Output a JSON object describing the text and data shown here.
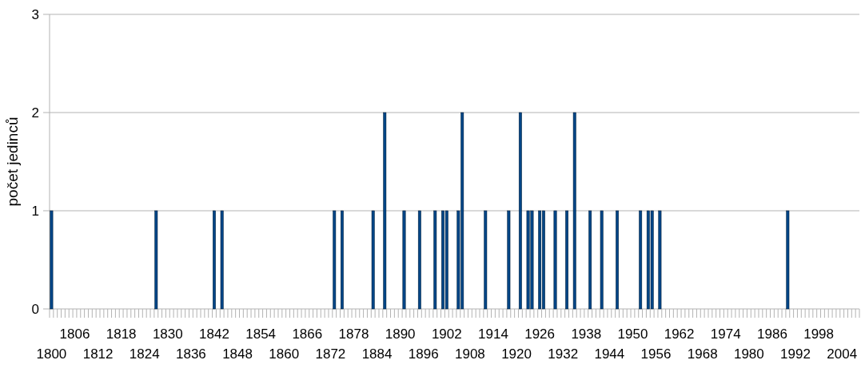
{
  "chart_data": {
    "type": "bar",
    "ylabel": "počet jedinců",
    "color": "#004586",
    "ylim": [
      0,
      3
    ],
    "yticks": [
      0,
      1,
      2,
      3
    ],
    "grid": "y",
    "categories": [
      "1800",
      null,
      null,
      null,
      null,
      null,
      "1806",
      null,
      null,
      null,
      null,
      null,
      "1812",
      null,
      null,
      null,
      null,
      null,
      "1818",
      null,
      null,
      null,
      null,
      null,
      "1824",
      null,
      null,
      null,
      null,
      null,
      "1830",
      null,
      null,
      null,
      null,
      null,
      "1836",
      null,
      null,
      null,
      null,
      null,
      "1842",
      null,
      null,
      null,
      null,
      null,
      "1848",
      null,
      null,
      null,
      null,
      null,
      "1854",
      null,
      null,
      null,
      null,
      null,
      "1860",
      null,
      null,
      null,
      null,
      null,
      "1866",
      null,
      null,
      null,
      null,
      null,
      "1872",
      null,
      null,
      null,
      null,
      null,
      "1878",
      null,
      null,
      null,
      null,
      null,
      "1884",
      null,
      null,
      null,
      null,
      null,
      "1890",
      null,
      null,
      null,
      null,
      null,
      "1896",
      null,
      null,
      null,
      null,
      null,
      "1902",
      null,
      null,
      null,
      null,
      null,
      "1908",
      null,
      null,
      null,
      null,
      null,
      "1914",
      null,
      null,
      null,
      null,
      null,
      "1920",
      null,
      null,
      null,
      null,
      null,
      "1926",
      null,
      null,
      null,
      null,
      null,
      "1932",
      null,
      null,
      null,
      null,
      null,
      "1938",
      null,
      null,
      null,
      null,
      null,
      "1944",
      null,
      null,
      null,
      null,
      null,
      "1950",
      null,
      null,
      null,
      null,
      null,
      "1956",
      null,
      null,
      null,
      null,
      null,
      "1962",
      null,
      null,
      null,
      null,
      null,
      "1968",
      null,
      null,
      null,
      null,
      null,
      "1974",
      null,
      null,
      null,
      null,
      null,
      "1980",
      null,
      null,
      null,
      null,
      null,
      "1986",
      null,
      null,
      null,
      null,
      null,
      "1992",
      null,
      null,
      null,
      null,
      null,
      "1998",
      null,
      null,
      null,
      null,
      null,
      "2004",
      null,
      null,
      null,
      null
    ],
    "values": [
      1,
      0,
      0,
      0,
      0,
      0,
      0,
      0,
      0,
      0,
      0,
      0,
      0,
      0,
      0,
      0,
      0,
      0,
      0,
      0,
      0,
      0,
      0,
      0,
      0,
      0,
      0,
      1,
      0,
      0,
      0,
      0,
      0,
      0,
      0,
      0,
      0,
      0,
      0,
      0,
      0,
      0,
      1,
      0,
      1,
      0,
      0,
      0,
      0,
      0,
      0,
      0,
      0,
      0,
      0,
      0,
      0,
      0,
      0,
      0,
      0,
      0,
      0,
      0,
      0,
      0,
      0,
      0,
      0,
      0,
      0,
      0,
      0,
      1,
      0,
      1,
      0,
      0,
      0,
      0,
      0,
      0,
      0,
      1,
      0,
      0,
      2,
      0,
      0,
      0,
      0,
      1,
      0,
      0,
      0,
      1,
      0,
      0,
      0,
      1,
      0,
      1,
      1,
      0,
      0,
      1,
      2,
      0,
      0,
      0,
      0,
      0,
      1,
      0,
      0,
      0,
      0,
      0,
      1,
      0,
      0,
      2,
      0,
      1,
      1,
      0,
      1,
      1,
      0,
      0,
      1,
      0,
      0,
      1,
      0,
      2,
      0,
      0,
      0,
      1,
      0,
      0,
      1,
      0,
      0,
      0,
      1,
      0,
      0,
      0,
      0,
      0,
      1,
      0,
      1,
      1,
      0,
      1,
      0,
      0,
      0,
      0,
      0,
      0,
      0,
      0,
      0,
      0,
      0,
      0,
      0,
      0,
      0,
      0,
      0,
      0,
      0,
      0,
      0,
      0,
      0,
      0,
      0,
      0,
      0,
      0,
      0,
      0,
      0,
      0,
      1,
      0,
      0,
      0,
      0,
      0,
      0,
      0,
      0,
      0,
      0,
      0,
      0,
      0,
      0,
      0,
      0,
      0,
      0
    ]
  }
}
